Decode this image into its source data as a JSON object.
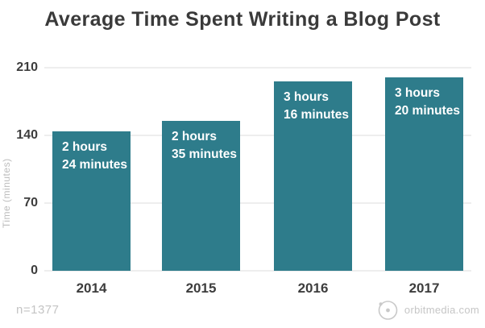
{
  "title": "Average Time Spent Writing a Blog Post",
  "chart_data": {
    "type": "bar",
    "title": "Average Time Spent Writing a Blog Post",
    "categories": [
      "2014",
      "2015",
      "2016",
      "2017"
    ],
    "values": [
      144,
      155,
      196,
      200
    ],
    "bar_labels": [
      [
        "2 hours",
        "24 minutes"
      ],
      [
        "2 hours",
        "35 minutes"
      ],
      [
        "3 hours",
        "16 minutes"
      ],
      [
        "3 hours",
        "20 minutes"
      ]
    ],
    "ylabel": "Time (minutes)",
    "xlabel": "",
    "yticks": [
      0,
      70,
      140,
      210
    ],
    "ylim": [
      0,
      210
    ],
    "grid": true,
    "legend": false,
    "bar_color": "#2E7C8B",
    "bar_label_color": "#FFFFFF",
    "gridline_color": "#DCDCDC",
    "title_color": "#3A3A3A",
    "tick_color": "#3D3D3D",
    "muted_color": "#C4C4C4"
  },
  "footer": {
    "sample_note": "n=1377",
    "source": "orbitmedia.com"
  }
}
